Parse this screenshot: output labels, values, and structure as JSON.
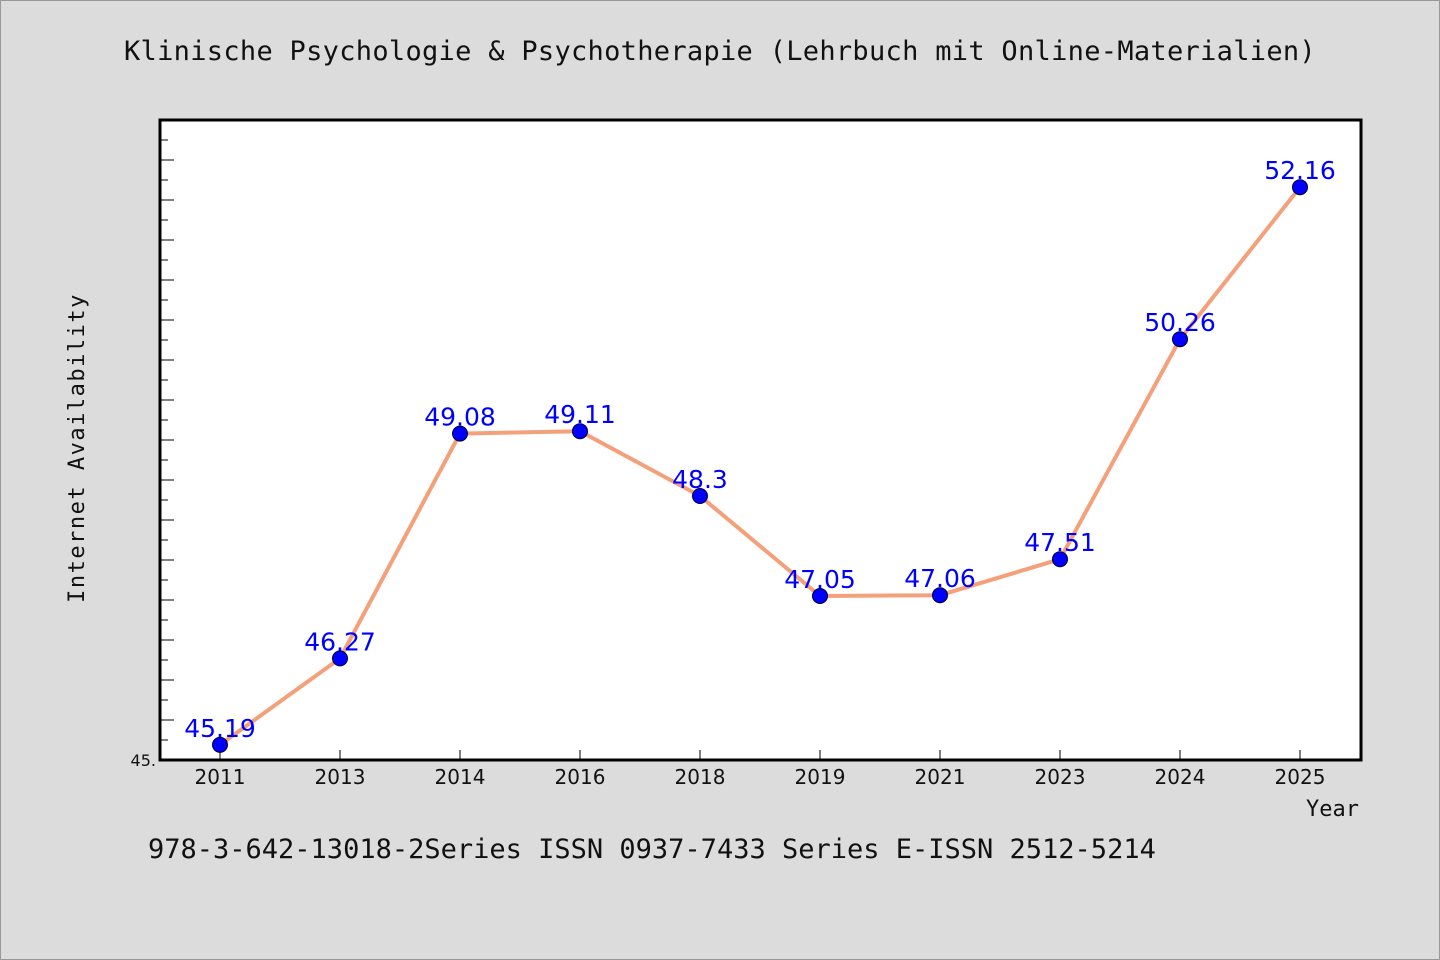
{
  "chart_data": {
    "type": "line",
    "title": "Klinische Psychologie & Psychotherapie (Lehrbuch mit Online-Materialien)",
    "xlabel": "Year",
    "ylabel": "Internet Availability",
    "y_tick_labels": [
      "45."
    ],
    "ylim": [
      45.0,
      53.0
    ],
    "categories": [
      "2011",
      "2013",
      "2014",
      "2016",
      "2018",
      "2019",
      "2021",
      "2023",
      "2024",
      "2025"
    ],
    "series": [
      {
        "values": [
          45.19,
          46.27,
          49.08,
          49.11,
          48.3,
          47.05,
          47.06,
          47.51,
          50.26,
          52.16
        ],
        "labels": [
          "45.19",
          "46.27",
          "49.08",
          "49.11",
          "48.3",
          "47.05",
          "47.06",
          "47.51",
          "50.26",
          "52.16"
        ],
        "line_color": "#f4a07a",
        "marker_color": "#0000ff",
        "label_color": "#0000ff"
      }
    ],
    "grid": false,
    "legend": "none"
  },
  "footer": "978-3-642-13018-2Series ISSN 0937-7433 Series E-ISSN 2512-5214"
}
